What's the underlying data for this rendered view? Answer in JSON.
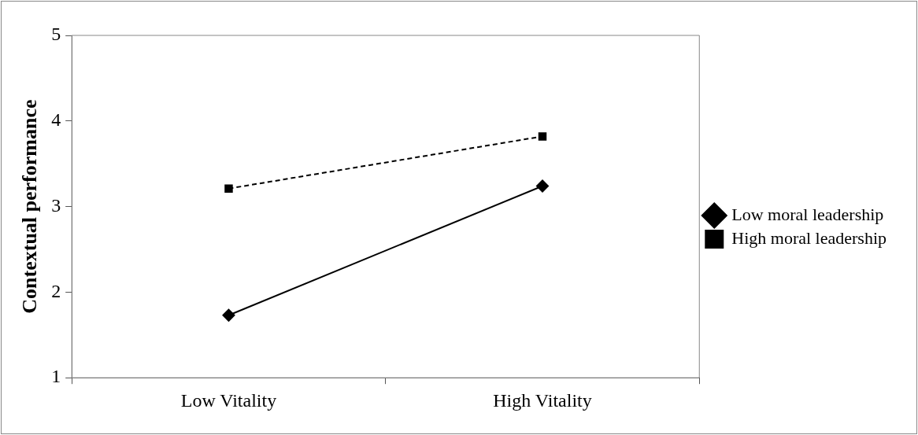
{
  "chart_data": {
    "type": "line",
    "ylabel": "Contextual performance",
    "categories": [
      "Low Vitality",
      "High Vitality"
    ],
    "series": [
      {
        "name": "Low moral leadership",
        "color": "#000000",
        "values": [
          1.73,
          3.24
        ],
        "marker": "diamond",
        "line_style": "solid"
      },
      {
        "name": "High moral leadership",
        "color": "#000000",
        "values": [
          3.21,
          3.82
        ],
        "marker": "square",
        "line_style": "dashed"
      }
    ],
    "ylim": [
      1,
      5
    ],
    "yticks": [
      1,
      2,
      3,
      4,
      5
    ],
    "grid": false,
    "legend": "right"
  }
}
